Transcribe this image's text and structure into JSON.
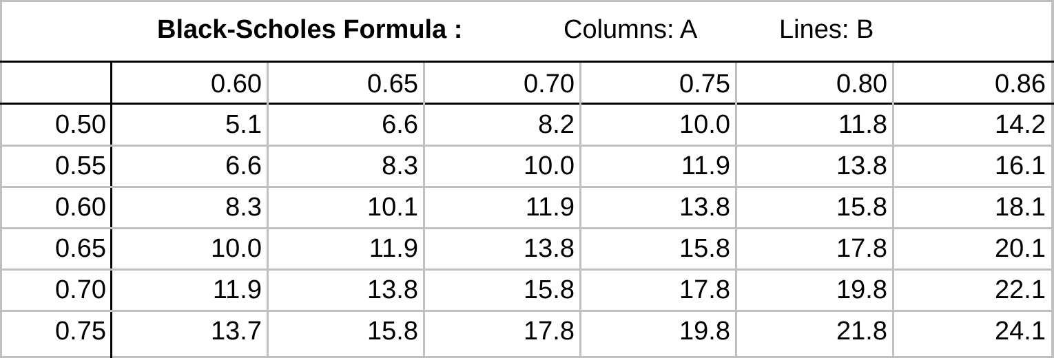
{
  "chart_data": {
    "type": "table",
    "title": "Black-Scholes Formula :",
    "columns_label": "Columns: A",
    "rows_label": "Lines: B",
    "columns": [
      "0.60",
      "0.65",
      "0.70",
      "0.75",
      "0.80",
      "0.86"
    ],
    "rows": [
      {
        "label": "0.50",
        "values": [
          "5.1",
          "6.6",
          "8.2",
          "10.0",
          "11.8",
          "14.2"
        ]
      },
      {
        "label": "0.55",
        "values": [
          "6.6",
          "8.3",
          "10.0",
          "11.9",
          "13.8",
          "16.1"
        ]
      },
      {
        "label": "0.60",
        "values": [
          "8.3",
          "10.1",
          "11.9",
          "13.8",
          "15.8",
          "18.1"
        ]
      },
      {
        "label": "0.65",
        "values": [
          "10.0",
          "11.9",
          "13.8",
          "15.8",
          "17.8",
          "20.1"
        ]
      },
      {
        "label": "0.70",
        "values": [
          "11.9",
          "13.8",
          "15.8",
          "17.8",
          "19.8",
          "22.1"
        ]
      },
      {
        "label": "0.75",
        "values": [
          "13.7",
          "15.8",
          "17.8",
          "19.8",
          "21.8",
          "24.1"
        ]
      }
    ]
  },
  "colors": {
    "grid": "#c0c0c0",
    "border": "#000000",
    "text": "#000000",
    "background": "#ffffff"
  }
}
